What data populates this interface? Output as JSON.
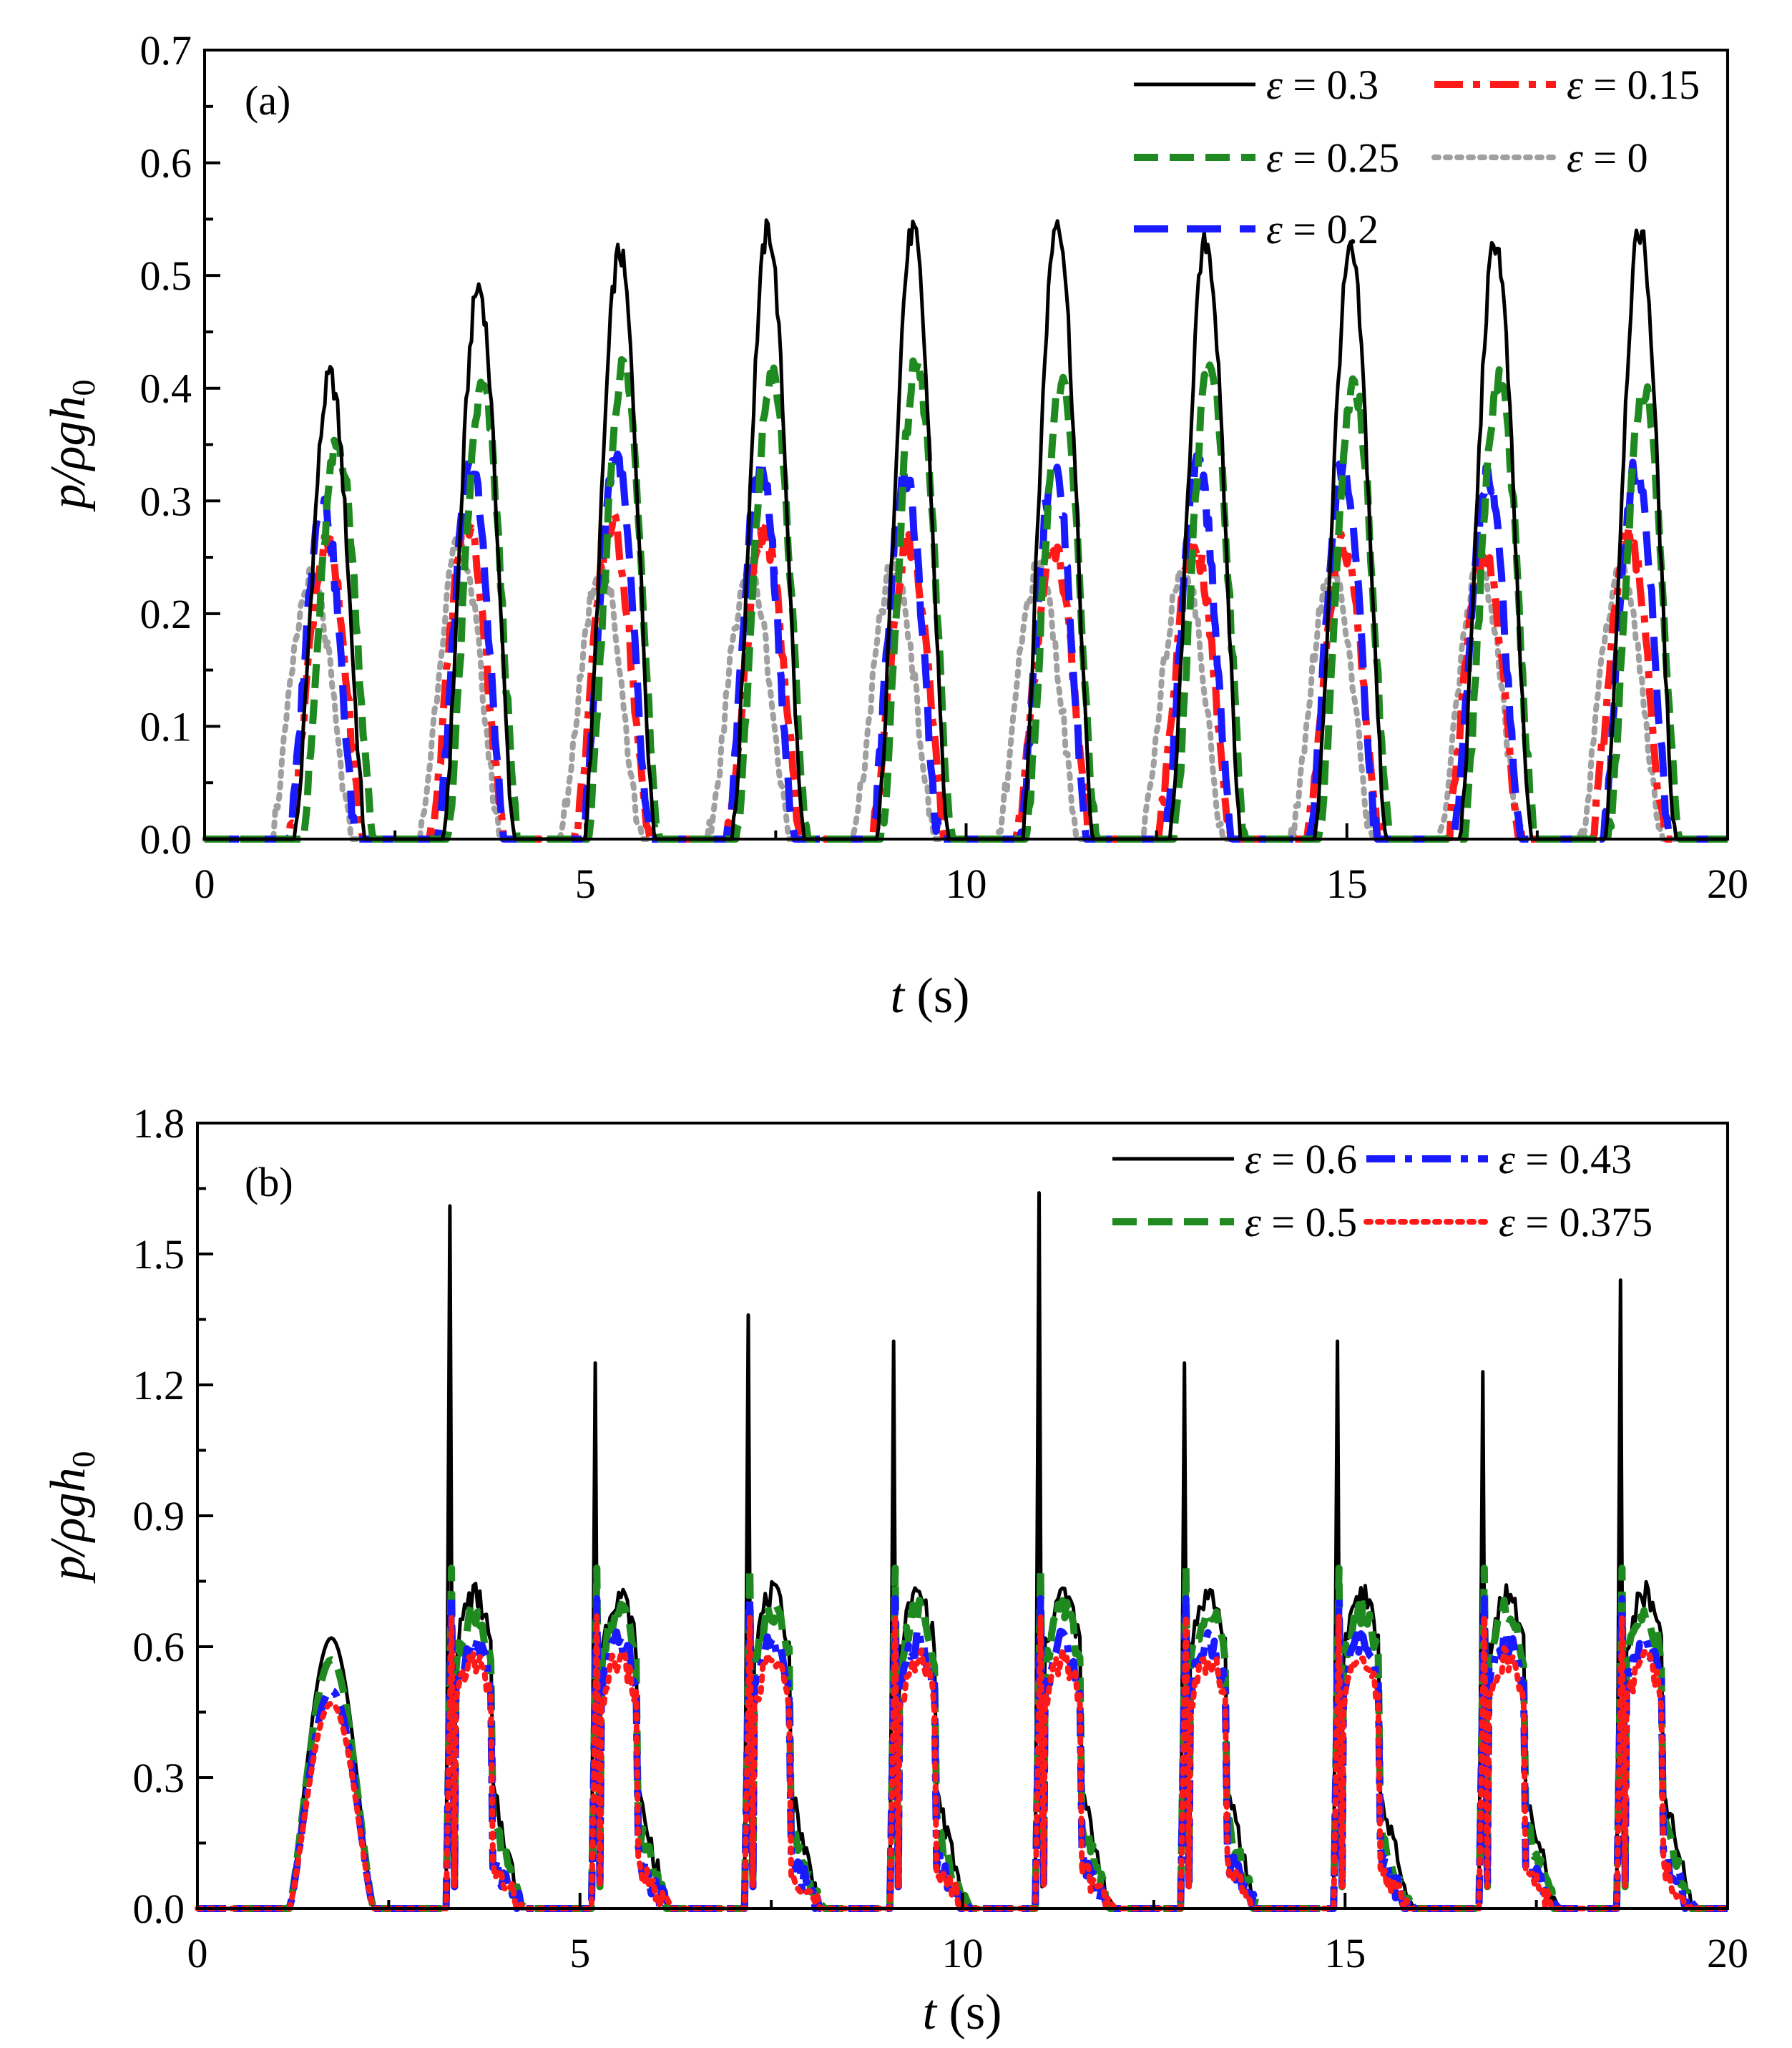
{
  "chart_data": [
    {
      "type": "line",
      "panel_label": "(a)",
      "xlabel": {
        "var": "t",
        "unit": " (s)"
      },
      "ylabel": {
        "var": "p/ρgh",
        "sub": "0"
      },
      "xlim": [
        0,
        20
      ],
      "ylim": [
        0,
        0.7
      ],
      "xticks": [
        0,
        5,
        10,
        15,
        20
      ],
      "xtick_labels": [
        "0",
        "5",
        "10",
        "15",
        "20"
      ],
      "yticks": [
        0,
        0.1,
        0.2,
        0.3,
        0.4,
        0.5,
        0.6,
        0.7
      ],
      "ytick_labels": [
        "0.0",
        "0.1",
        "0.2",
        "0.3",
        "0.4",
        "0.5",
        "0.6",
        "0.7"
      ],
      "grid": false,
      "legend_position": "top-right",
      "pulse_starts": [
        1.1,
        3.0,
        4.9,
        6.8,
        8.7,
        10.6,
        12.5,
        14.4,
        16.3,
        18.2
      ],
      "series": [
        {
          "name": "ε = 0.3",
          "label_value": "0.3",
          "color": "#000000",
          "style": "solid",
          "peak_times": [
            1.65,
            3.6,
            5.45,
            7.4,
            9.3,
            11.2,
            13.15,
            15.05,
            16.95,
            18.85
          ],
          "peak_values": [
            0.41,
            0.49,
            0.52,
            0.54,
            0.54,
            0.55,
            0.53,
            0.52,
            0.53,
            0.54
          ],
          "width": 0.95
        },
        {
          "name": "ε = 0.25",
          "label_value": "0.25",
          "color": "#1f8a1f",
          "style": "dash",
          "peak_times": [
            1.75,
            3.65,
            5.5,
            7.45,
            9.35,
            11.25,
            13.2,
            15.1,
            17.0,
            18.9
          ],
          "peak_values": [
            0.35,
            0.4,
            0.42,
            0.41,
            0.42,
            0.4,
            0.42,
            0.4,
            0.41,
            0.4
          ],
          "width": 0.95
        },
        {
          "name": "ε = 0.2",
          "label_value": "0.2",
          "color": "#1a1aff",
          "style": "longdash",
          "peak_times": [
            1.55,
            3.5,
            5.4,
            7.3,
            9.2,
            11.15,
            13.05,
            14.95,
            16.85,
            18.8
          ],
          "peak_values": [
            0.3,
            0.33,
            0.34,
            0.33,
            0.32,
            0.33,
            0.33,
            0.33,
            0.32,
            0.33
          ],
          "width": 0.9
        },
        {
          "name": "ε = 0.15",
          "label_value": "0.15",
          "color": "#ff1a1a",
          "style": "dashdot",
          "peak_times": [
            1.6,
            3.45,
            5.35,
            7.35,
            9.25,
            11.15,
            13.0,
            14.95,
            16.8,
            18.7
          ],
          "peak_values": [
            0.26,
            0.28,
            0.28,
            0.27,
            0.26,
            0.26,
            0.26,
            0.26,
            0.25,
            0.27
          ],
          "width": 1.0
        },
        {
          "name": "ε = 0",
          "label_value": "0",
          "color": "#a0a0a0",
          "style": "dot",
          "peak_times": [
            1.4,
            3.35,
            5.2,
            7.15,
            9.05,
            10.95,
            12.85,
            14.8,
            16.75,
            18.6
          ],
          "peak_values": [
            0.23,
            0.26,
            0.24,
            0.24,
            0.24,
            0.24,
            0.24,
            0.24,
            0.24,
            0.24
          ],
          "width": 1.1
        }
      ]
    },
    {
      "type": "line",
      "panel_label": "(b)",
      "xlabel": {
        "var": "t",
        "unit": " (s)"
      },
      "ylabel": {
        "var": "p/ρgh",
        "sub": "0"
      },
      "xlim": [
        0,
        20
      ],
      "ylim": [
        0,
        1.8
      ],
      "xticks": [
        0,
        5,
        10,
        15,
        20
      ],
      "xtick_labels": [
        "0",
        "5",
        "10",
        "15",
        "20"
      ],
      "yticks": [
        0,
        0.3,
        0.6,
        0.9,
        1.2,
        1.5,
        1.8
      ],
      "ytick_labels": [
        "0.0",
        "0.3",
        "0.6",
        "0.9",
        "1.2",
        "1.5",
        "1.8"
      ],
      "grid": false,
      "legend_position": "top-right",
      "spike_times": [
        3.3,
        5.2,
        7.2,
        9.1,
        11.0,
        12.9,
        14.9,
        16.8,
        18.6
      ],
      "spike_values": [
        1.61,
        1.25,
        1.36,
        1.3,
        1.64,
        1.25,
        1.3,
        1.23,
        1.44
      ],
      "series": [
        {
          "name": "ε = 0.6",
          "label_value": "0.6",
          "color": "#000000",
          "style": "solid",
          "first_peak": 0.62,
          "plateau": 0.72,
          "tail": 0.28
        },
        {
          "name": "ε = 0.5",
          "label_value": "0.5",
          "color": "#1f8a1f",
          "style": "dash",
          "first_peak": 0.57,
          "plateau": 0.68,
          "tail": 0.2
        },
        {
          "name": "ε = 0.43",
          "label_value": "0.43",
          "color": "#1a1aff",
          "style": "dashdot",
          "first_peak": 0.5,
          "plateau": 0.61,
          "tail": 0.12
        },
        {
          "name": "ε = 0.375",
          "label_value": "0.375",
          "color": "#ff1a1a",
          "style": "dot",
          "first_peak": 0.47,
          "plateau": 0.57,
          "tail": 0.1
        }
      ]
    }
  ]
}
